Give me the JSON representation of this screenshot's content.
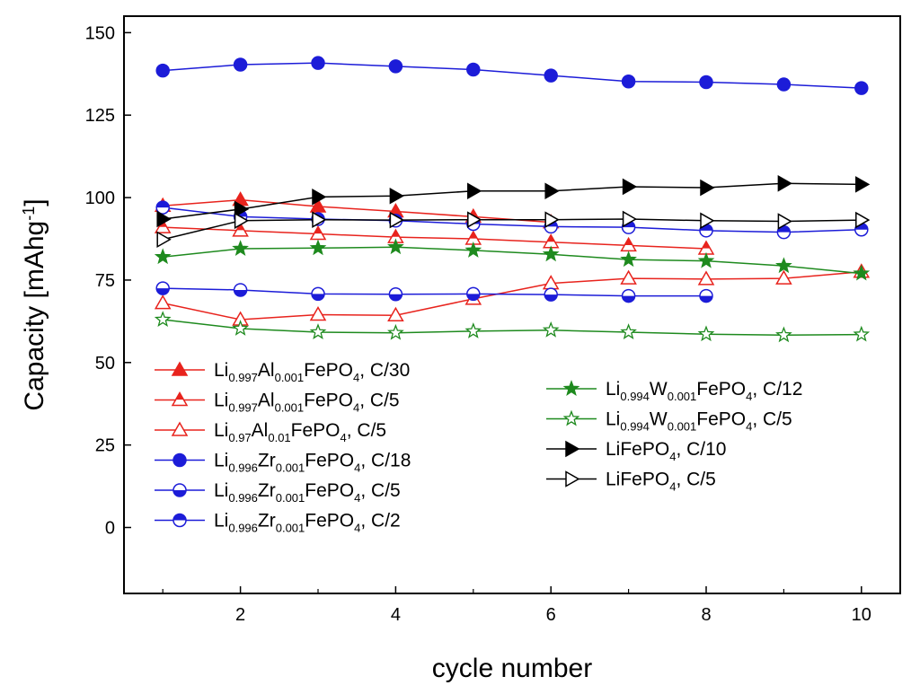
{
  "chart_data": {
    "type": "line",
    "title": "",
    "xlabel": "cycle number",
    "ylabel_main": "Capacity [mAhg",
    "ylabel_sup": "-1",
    "ylabel_end": "]",
    "xlim": [
      0.5,
      10.5
    ],
    "ylim": [
      -20,
      155
    ],
    "xticks": [
      2,
      4,
      6,
      8,
      10
    ],
    "xminor": [
      1,
      3,
      5,
      7,
      9
    ],
    "yticks": [
      0,
      25,
      50,
      75,
      100,
      125,
      150
    ],
    "grid": false,
    "legend_position": "lower-left and lower-center",
    "series": [
      {
        "name_parts": [
          [
            "Li",
            ""
          ],
          [
            "0.997",
            "sub"
          ],
          [
            "Al",
            ""
          ],
          [
            "0.001",
            "sub"
          ],
          [
            "FePO",
            ""
          ],
          [
            "4",
            "sub"
          ],
          [
            ", C/30",
            ""
          ]
        ],
        "color": "#e8231d",
        "marker": "triangle",
        "fill": "full",
        "x": [
          1,
          2,
          3,
          4,
          5,
          6
        ],
        "y": [
          97.5,
          99.3,
          97.3,
          95.8,
          94.2,
          92.5
        ]
      },
      {
        "name_parts": [
          [
            "Li",
            ""
          ],
          [
            "0.997",
            "sub"
          ],
          [
            "Al",
            ""
          ],
          [
            "0.001",
            "sub"
          ],
          [
            "FePO",
            ""
          ],
          [
            "4",
            "sub"
          ],
          [
            ", C/5",
            ""
          ]
        ],
        "color": "#e8231d",
        "marker": "triangle",
        "fill": "top",
        "x": [
          1,
          2,
          3,
          4,
          5,
          6,
          7,
          8
        ],
        "y": [
          91,
          90,
          89,
          88,
          87.5,
          86.5,
          85.5,
          84.5
        ]
      },
      {
        "name_parts": [
          [
            "Li",
            ""
          ],
          [
            "0.97",
            "sub"
          ],
          [
            "Al",
            ""
          ],
          [
            "0.01",
            "sub"
          ],
          [
            "FePO",
            ""
          ],
          [
            "4",
            "sub"
          ],
          [
            ", C/5",
            ""
          ]
        ],
        "color": "#e8231d",
        "marker": "triangle",
        "fill": "open",
        "x": [
          1,
          2,
          3,
          4,
          5,
          6,
          7,
          8,
          9,
          10
        ],
        "y": [
          68,
          63,
          64.5,
          64.3,
          69.3,
          74,
          75.5,
          75.3,
          75.5,
          77.5
        ]
      },
      {
        "name_parts": [
          [
            "Li",
            ""
          ],
          [
            "0.996",
            "sub"
          ],
          [
            "Zr",
            ""
          ],
          [
            "0.001",
            "sub"
          ],
          [
            "FePO",
            ""
          ],
          [
            "4",
            "sub"
          ],
          [
            ", C/18",
            ""
          ]
        ],
        "color": "#1c1cd8",
        "marker": "circle",
        "fill": "full",
        "x": [
          1,
          2,
          3,
          4,
          5,
          6,
          7,
          8,
          9,
          10
        ],
        "y": [
          138.5,
          140.3,
          140.8,
          139.8,
          138.8,
          137,
          135.2,
          135,
          134.3,
          133.2
        ]
      },
      {
        "name_parts": [
          [
            "Li",
            ""
          ],
          [
            "0.996",
            "sub"
          ],
          [
            "Zr",
            ""
          ],
          [
            "0.001",
            "sub"
          ],
          [
            "FePO",
            ""
          ],
          [
            "4",
            "sub"
          ],
          [
            ", C/5",
            ""
          ]
        ],
        "color": "#1c1cd8",
        "marker": "circle",
        "fill": "bottom",
        "x": [
          1,
          2,
          3,
          4,
          5,
          6,
          7,
          8
        ],
        "y": [
          72.5,
          72,
          70.8,
          70.7,
          70.8,
          70.6,
          70.2,
          70.2
        ]
      },
      {
        "name_parts": [
          [
            "Li",
            ""
          ],
          [
            "0.996",
            "sub"
          ],
          [
            "Zr",
            ""
          ],
          [
            "0.001",
            "sub"
          ],
          [
            "FePO",
            ""
          ],
          [
            "4",
            "sub"
          ],
          [
            ", C/2",
            ""
          ]
        ],
        "color": "#1c1cd8",
        "marker": "circle",
        "fill": "top",
        "x": [
          1,
          2,
          3,
          4,
          5,
          6,
          7,
          8,
          9,
          10
        ],
        "y": [
          97,
          94.2,
          93.5,
          93,
          92,
          91.2,
          91,
          90,
          89.5,
          90.3
        ]
      },
      {
        "name_parts": [
          [
            "Li",
            ""
          ],
          [
            "0.994",
            "sub"
          ],
          [
            "W",
            ""
          ],
          [
            "0.001",
            "sub"
          ],
          [
            "FePO",
            ""
          ],
          [
            "4",
            "sub"
          ],
          [
            ", C/12",
            ""
          ]
        ],
        "color": "#1e8a1e",
        "marker": "star",
        "fill": "full",
        "x": [
          1,
          2,
          3,
          4,
          5,
          6,
          7,
          8,
          9,
          10
        ],
        "y": [
          82,
          84.5,
          84.7,
          85,
          84,
          82.8,
          81.2,
          80.8,
          79.3,
          77
        ]
      },
      {
        "name_parts": [
          [
            "Li",
            ""
          ],
          [
            "0.994",
            "sub"
          ],
          [
            "W",
            ""
          ],
          [
            "0.001",
            "sub"
          ],
          [
            "FePO",
            ""
          ],
          [
            "4",
            "sub"
          ],
          [
            ", C/5",
            ""
          ]
        ],
        "color": "#1e8a1e",
        "marker": "star",
        "fill": "open",
        "x": [
          1,
          2,
          3,
          4,
          5,
          6,
          7,
          8,
          9,
          10
        ],
        "y": [
          63,
          60.3,
          59.2,
          59,
          59.5,
          59.8,
          59.2,
          58.6,
          58.3,
          58.5
        ]
      },
      {
        "name_parts": [
          [
            "LiFePO",
            ""
          ],
          [
            "4",
            "sub"
          ],
          [
            ", C/10",
            ""
          ]
        ],
        "color": "#000000",
        "marker": "triangle-right",
        "fill": "full",
        "x": [
          1,
          2,
          3,
          4,
          5,
          6,
          7,
          8,
          9,
          10
        ],
        "y": [
          93.5,
          96.5,
          100.2,
          100.5,
          102,
          102,
          103.3,
          103,
          104.3,
          104
        ]
      },
      {
        "name_parts": [
          [
            "LiFePO",
            ""
          ],
          [
            "4",
            "sub"
          ],
          [
            ", C/5",
            ""
          ]
        ],
        "color": "#000000",
        "marker": "triangle-right",
        "fill": "open",
        "x": [
          1,
          2,
          3,
          4,
          5,
          6,
          7,
          8,
          9,
          10
        ],
        "y": [
          87.3,
          93,
          93.3,
          93.2,
          93.3,
          93.3,
          93.5,
          93,
          92.8,
          93.2
        ]
      }
    ],
    "legend_columns": [
      [
        0,
        1,
        2,
        3,
        4,
        5
      ],
      [
        6,
        7,
        8,
        9
      ]
    ],
    "frame_color": "#000000"
  }
}
